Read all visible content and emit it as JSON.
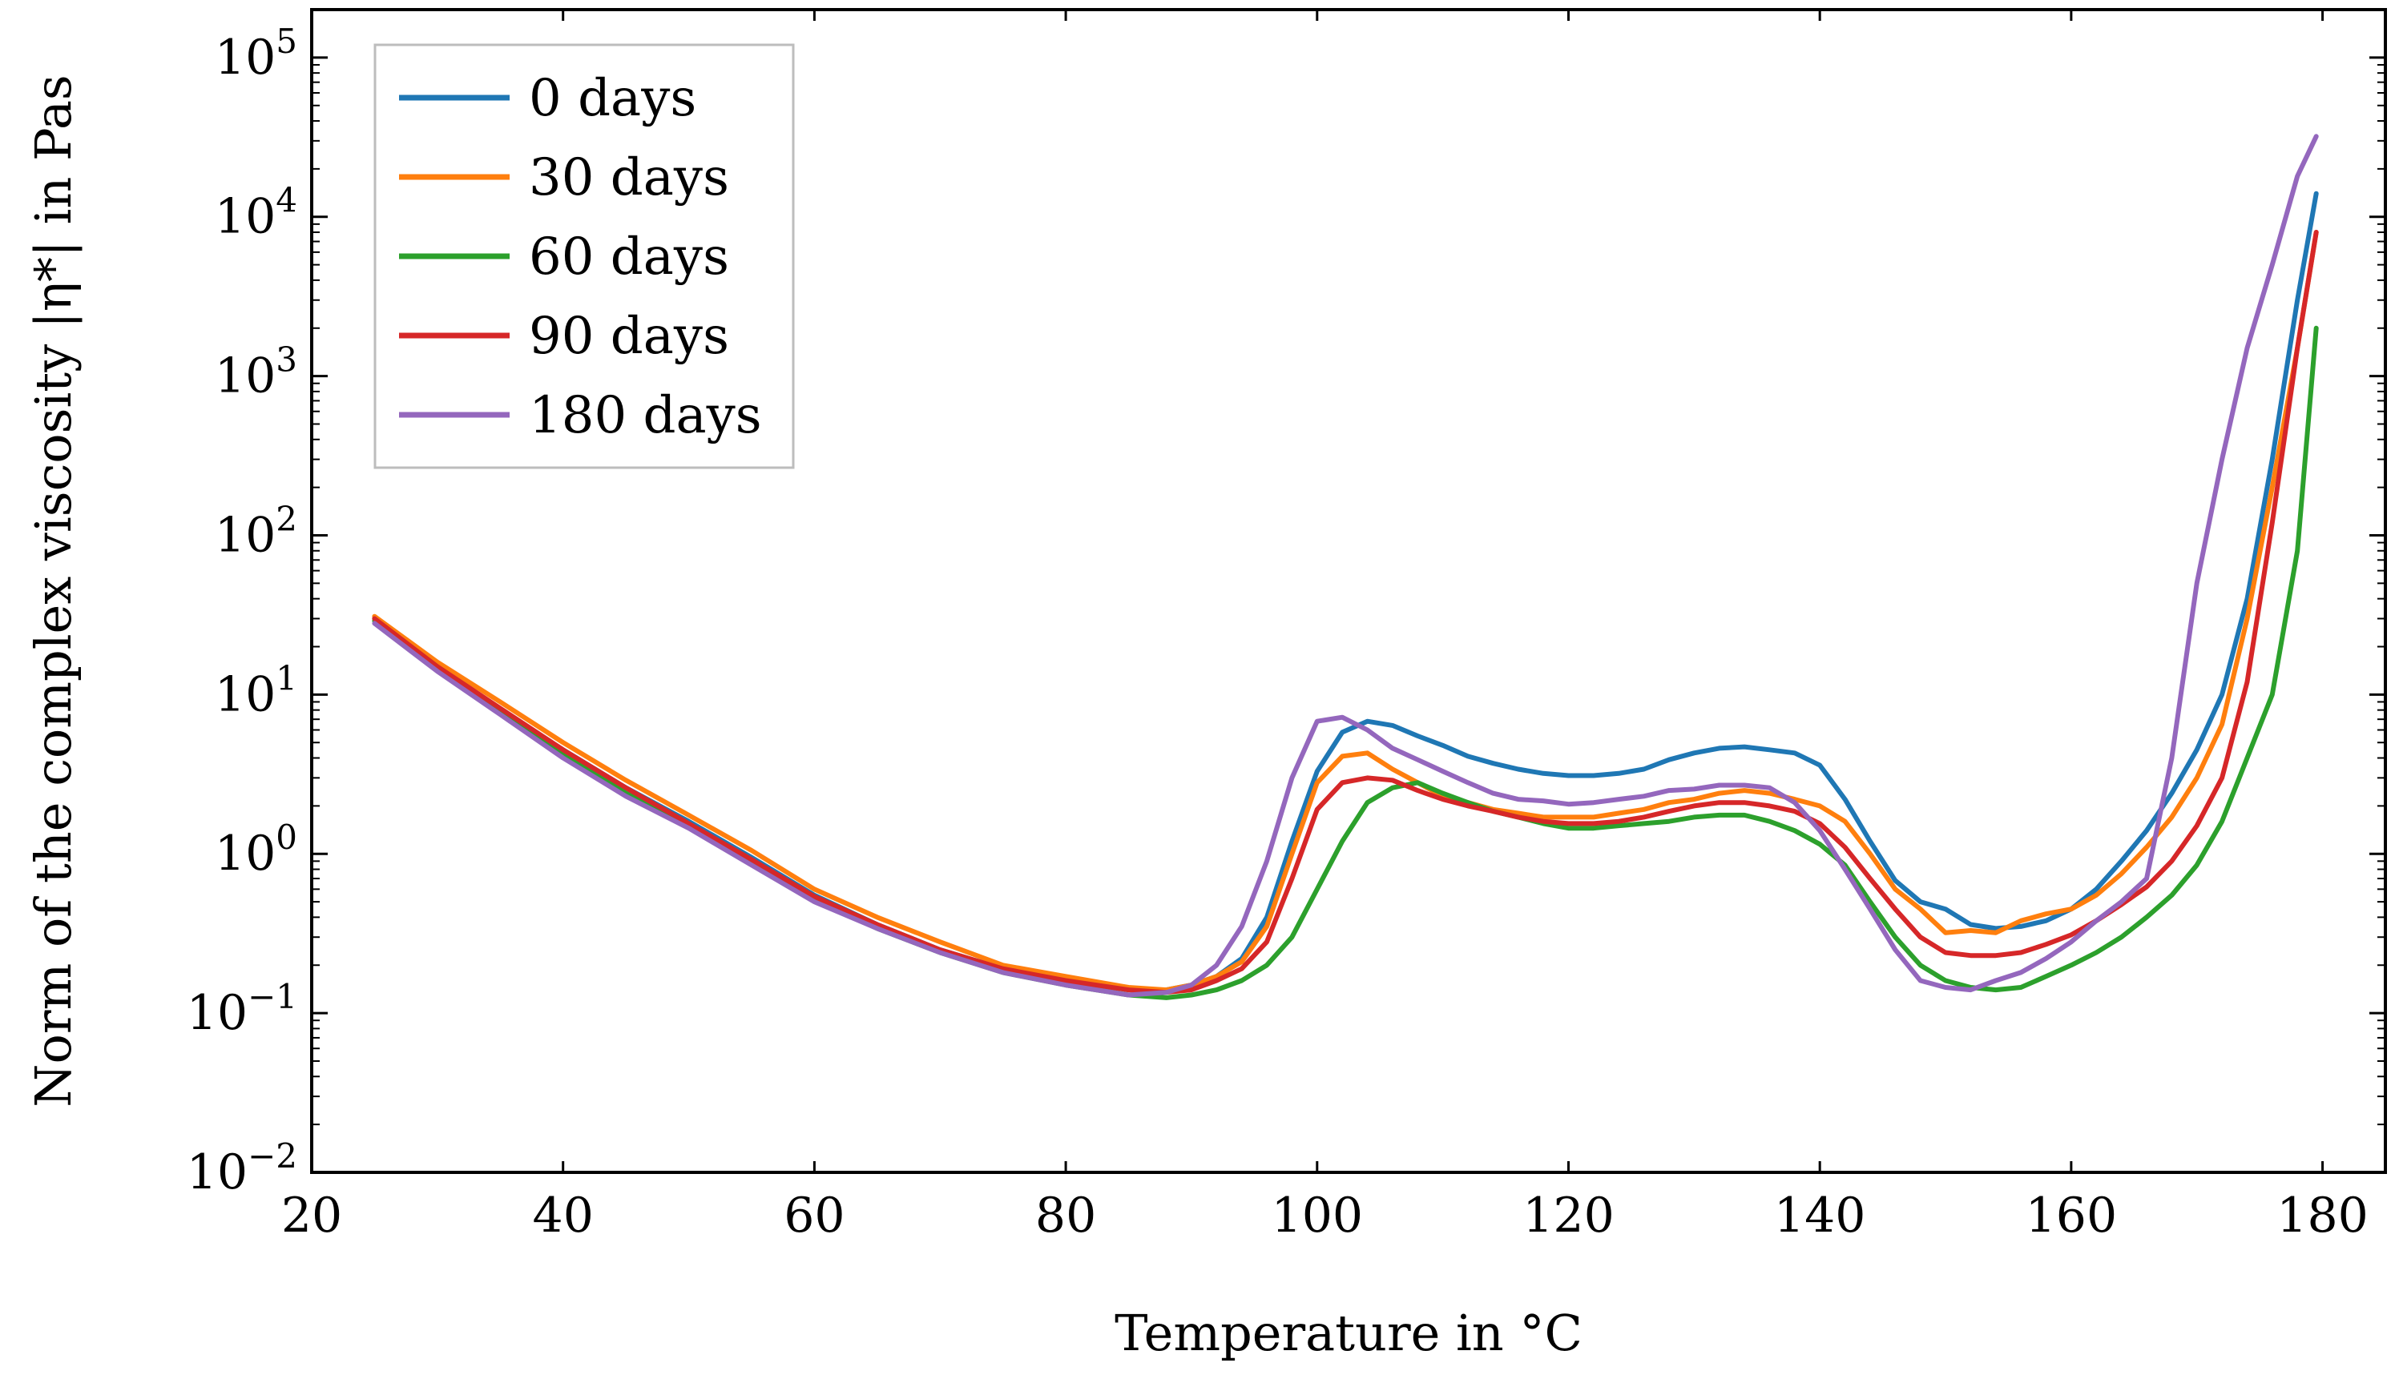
{
  "chart_data": {
    "type": "line",
    "title": "",
    "xlabel": "Temperature in °C",
    "ylabel": "Norm of the complex viscosity |η*| in Pas",
    "yscale": "log",
    "xlim": [
      20,
      185
    ],
    "ylim": [
      0.01,
      200000
    ],
    "x_ticks": [
      20,
      40,
      60,
      80,
      100,
      120,
      140,
      160,
      180
    ],
    "y_tick_exponents": [
      "−2",
      "−1",
      "0",
      "1",
      "2",
      "3",
      "4",
      "5"
    ],
    "y_tick_base": "10",
    "legend_position": "top-left",
    "series": [
      {
        "name": "0 days",
        "color": "#1f77b4",
        "x": [
          25,
          30,
          35,
          40,
          45,
          50,
          55,
          60,
          65,
          70,
          75,
          80,
          85,
          88,
          90,
          92,
          94,
          96,
          98,
          100,
          102,
          104,
          106,
          108,
          110,
          112,
          114,
          116,
          118,
          120,
          122,
          124,
          126,
          128,
          130,
          132,
          134,
          136,
          138,
          140,
          142,
          144,
          146,
          148,
          150,
          152,
          154,
          156,
          158,
          160,
          162,
          164,
          166,
          168,
          170,
          172,
          174,
          176,
          178,
          179.5
        ],
        "y": [
          30,
          15,
          8,
          4.5,
          2.6,
          1.6,
          0.95,
          0.55,
          0.36,
          0.25,
          0.19,
          0.16,
          0.14,
          0.14,
          0.15,
          0.17,
          0.22,
          0.4,
          1.2,
          3.3,
          5.8,
          6.8,
          6.4,
          5.5,
          4.8,
          4.1,
          3.7,
          3.4,
          3.2,
          3.1,
          3.1,
          3.2,
          3.4,
          3.9,
          4.3,
          4.6,
          4.7,
          4.5,
          4.3,
          3.6,
          2.2,
          1.2,
          0.68,
          0.5,
          0.45,
          0.36,
          0.34,
          0.35,
          0.38,
          0.45,
          0.6,
          0.9,
          1.4,
          2.4,
          4.5,
          10,
          40,
          300,
          3000,
          14000
        ]
      },
      {
        "name": "30 days",
        "color": "#ff7f0e",
        "x": [
          25,
          30,
          35,
          40,
          45,
          50,
          55,
          60,
          65,
          70,
          75,
          80,
          85,
          88,
          90,
          92,
          94,
          96,
          98,
          100,
          102,
          104,
          106,
          108,
          110,
          112,
          114,
          116,
          118,
          120,
          122,
          124,
          126,
          128,
          130,
          132,
          134,
          136,
          138,
          140,
          142,
          144,
          146,
          148,
          150,
          152,
          154,
          156,
          158,
          160,
          162,
          164,
          166,
          168,
          170,
          172,
          174,
          176,
          178,
          179.5
        ],
        "y": [
          31,
          16,
          9,
          5,
          2.9,
          1.75,
          1.05,
          0.6,
          0.4,
          0.28,
          0.2,
          0.17,
          0.145,
          0.14,
          0.15,
          0.17,
          0.21,
          0.35,
          1,
          2.8,
          4.1,
          4.3,
          3.4,
          2.8,
          2.3,
          2.1,
          1.9,
          1.8,
          1.7,
          1.7,
          1.7,
          1.8,
          1.9,
          2.1,
          2.2,
          2.4,
          2.5,
          2.4,
          2.2,
          2,
          1.6,
          1,
          0.6,
          0.45,
          0.32,
          0.33,
          0.32,
          0.38,
          0.42,
          0.45,
          0.55,
          0.75,
          1.1,
          1.7,
          3,
          6.5,
          30,
          200,
          1500,
          8000
        ]
      },
      {
        "name": "60 days",
        "color": "#2ca02c",
        "x": [
          25,
          30,
          35,
          40,
          45,
          50,
          55,
          60,
          65,
          70,
          75,
          80,
          85,
          88,
          90,
          92,
          94,
          96,
          98,
          100,
          102,
          104,
          106,
          108,
          110,
          112,
          114,
          116,
          118,
          120,
          122,
          124,
          126,
          128,
          130,
          132,
          134,
          136,
          138,
          140,
          142,
          144,
          146,
          148,
          150,
          152,
          154,
          156,
          158,
          160,
          162,
          164,
          166,
          168,
          170,
          172,
          174,
          176,
          178,
          179.5
        ],
        "y": [
          29,
          14.5,
          7.8,
          4.2,
          2.4,
          1.5,
          0.88,
          0.52,
          0.34,
          0.24,
          0.18,
          0.15,
          0.13,
          0.125,
          0.13,
          0.14,
          0.16,
          0.2,
          0.3,
          0.6,
          1.2,
          2.1,
          2.6,
          2.8,
          2.4,
          2.1,
          1.85,
          1.7,
          1.55,
          1.45,
          1.45,
          1.5,
          1.55,
          1.6,
          1.7,
          1.75,
          1.75,
          1.6,
          1.4,
          1.15,
          0.85,
          0.5,
          0.3,
          0.2,
          0.16,
          0.145,
          0.14,
          0.145,
          0.17,
          0.2,
          0.24,
          0.3,
          0.4,
          0.55,
          0.85,
          1.6,
          4,
          10,
          80,
          2000
        ]
      },
      {
        "name": "90 days",
        "color": "#d62728",
        "x": [
          25,
          30,
          35,
          40,
          45,
          50,
          55,
          60,
          65,
          70,
          75,
          80,
          85,
          88,
          90,
          92,
          94,
          96,
          98,
          100,
          102,
          104,
          106,
          108,
          110,
          112,
          114,
          116,
          118,
          120,
          122,
          124,
          126,
          128,
          130,
          132,
          134,
          136,
          138,
          140,
          142,
          144,
          146,
          148,
          150,
          152,
          154,
          156,
          158,
          160,
          162,
          164,
          166,
          168,
          170,
          172,
          174,
          176,
          178,
          179.5
        ],
        "y": [
          30,
          15,
          8.2,
          4.5,
          2.6,
          1.55,
          0.92,
          0.54,
          0.36,
          0.25,
          0.19,
          0.16,
          0.14,
          0.135,
          0.14,
          0.16,
          0.19,
          0.28,
          0.7,
          1.9,
          2.8,
          3,
          2.9,
          2.5,
          2.2,
          2,
          1.85,
          1.7,
          1.6,
          1.55,
          1.55,
          1.6,
          1.7,
          1.85,
          2,
          2.1,
          2.1,
          2,
          1.85,
          1.55,
          1.1,
          0.7,
          0.45,
          0.3,
          0.24,
          0.23,
          0.23,
          0.24,
          0.27,
          0.31,
          0.38,
          0.48,
          0.62,
          0.9,
          1.5,
          3,
          12,
          120,
          1500,
          8000
        ]
      },
      {
        "name": "180 days",
        "color": "#9467bd",
        "x": [
          25,
          30,
          35,
          40,
          45,
          50,
          55,
          60,
          65,
          70,
          75,
          80,
          85,
          88,
          90,
          92,
          94,
          96,
          98,
          100,
          102,
          104,
          106,
          108,
          110,
          112,
          114,
          116,
          118,
          120,
          122,
          124,
          126,
          128,
          130,
          132,
          134,
          136,
          138,
          140,
          142,
          144,
          146,
          148,
          150,
          152,
          154,
          156,
          158,
          160,
          162,
          164,
          166,
          168,
          170,
          172,
          174,
          176,
          178,
          179.5
        ],
        "y": [
          28,
          14,
          7.5,
          4,
          2.3,
          1.45,
          0.85,
          0.5,
          0.34,
          0.24,
          0.18,
          0.15,
          0.13,
          0.135,
          0.15,
          0.2,
          0.35,
          0.9,
          3,
          6.8,
          7.2,
          6,
          4.6,
          3.9,
          3.3,
          2.8,
          2.4,
          2.2,
          2.15,
          2.05,
          2.1,
          2.2,
          2.3,
          2.5,
          2.55,
          2.7,
          2.7,
          2.6,
          2.1,
          1.4,
          0.8,
          0.45,
          0.25,
          0.16,
          0.145,
          0.14,
          0.16,
          0.18,
          0.22,
          0.28,
          0.38,
          0.5,
          0.7,
          4,
          50,
          300,
          1500,
          5000,
          18000,
          32000
        ]
      }
    ]
  }
}
